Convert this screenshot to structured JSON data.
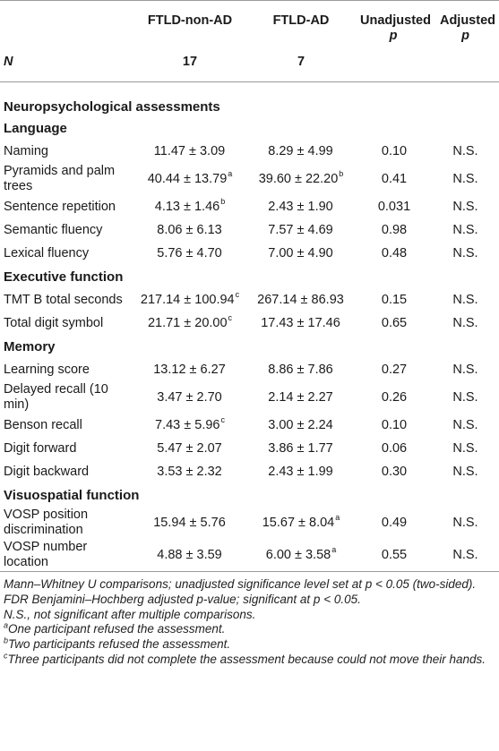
{
  "header": {
    "col1": "FTLD-non-AD",
    "col2": "FTLD-AD",
    "col3_line1": "Unadjusted",
    "col3_line2": "p",
    "col4_line1": "Adjusted",
    "col4_line2": "p",
    "n_label": "N",
    "n1": "17",
    "n2": "7"
  },
  "section_main": "Neuropsychological assessments",
  "groups": [
    {
      "title": "Language",
      "rows": [
        {
          "label": "Naming",
          "v1": "11.47 ± 3.09",
          "s1": "",
          "v2": "8.29 ± 4.99",
          "s2": "",
          "p": "0.10",
          "adj": "N.S."
        },
        {
          "label": "Pyramids and palm trees",
          "v1": "40.44 ± 13.79",
          "s1": "a",
          "v2": "39.60 ± 22.20",
          "s2": "b",
          "p": "0.41",
          "adj": "N.S."
        },
        {
          "label": "Sentence repetition",
          "v1": "4.13 ± 1.46",
          "s1": "b",
          "v2": "2.43 ± 1.90",
          "s2": "",
          "p": "0.031",
          "adj": "N.S."
        },
        {
          "label": "Semantic fluency",
          "v1": "8.06 ± 6.13",
          "s1": "",
          "v2": "7.57 ± 4.69",
          "s2": "",
          "p": "0.98",
          "adj": "N.S."
        },
        {
          "label": "Lexical fluency",
          "v1": "5.76 ± 4.70",
          "s1": "",
          "v2": "7.00 ± 4.90",
          "s2": "",
          "p": "0.48",
          "adj": "N.S."
        }
      ]
    },
    {
      "title": "Executive function",
      "rows": [
        {
          "label": "TMT B total seconds",
          "v1": "217.14 ± 100.94",
          "s1": "c",
          "v2": "267.14 ± 86.93",
          "s2": "",
          "p": "0.15",
          "adj": "N.S."
        },
        {
          "label": "Total digit symbol",
          "v1": "21.71 ± 20.00",
          "s1": "c",
          "v2": "17.43 ± 17.46",
          "s2": "",
          "p": "0.65",
          "adj": "N.S."
        }
      ]
    },
    {
      "title": "Memory",
      "rows": [
        {
          "label": "Learning score",
          "v1": "13.12 ± 6.27",
          "s1": "",
          "v2": "8.86 ± 7.86",
          "s2": "",
          "p": "0.27",
          "adj": "N.S."
        },
        {
          "label": "Delayed recall (10 min)",
          "v1": "3.47 ± 2.70",
          "s1": "",
          "v2": "2.14 ± 2.27",
          "s2": "",
          "p": "0.26",
          "adj": "N.S."
        },
        {
          "label": "Benson recall",
          "v1": "7.43 ± 5.96",
          "s1": "c",
          "v2": "3.00 ± 2.24",
          "s2": "",
          "p": "0.10",
          "adj": "N.S."
        },
        {
          "label": "Digit forward",
          "v1": "5.47 ± 2.07",
          "s1": "",
          "v2": "3.86 ± 1.77",
          "s2": "",
          "p": "0.06",
          "adj": "N.S."
        },
        {
          "label": "Digit backward",
          "v1": "3.53 ± 2.32",
          "s1": "",
          "v2": "2.43 ± 1.99",
          "s2": "",
          "p": "0.30",
          "adj": "N.S."
        }
      ]
    },
    {
      "title": "Visuospatial function",
      "rows": [
        {
          "label": "VOSP position discrimination",
          "v1": "15.94 ± 5.76",
          "s1": "",
          "v2": "15.67 ± 8.04",
          "s2": "a",
          "p": "0.49",
          "adj": "N.S."
        },
        {
          "label": "VOSP number location",
          "v1": "4.88 ± 3.59",
          "s1": "",
          "v2": "6.00 ± 3.58",
          "s2": "a",
          "p": "0.55",
          "adj": "N.S."
        }
      ]
    }
  ],
  "notes": {
    "n1": "Mann–Whitney U comparisons; unadjusted significance level set at p < 0.05 (two-sided).",
    "n2": "FDR Benjamini–Hochberg adjusted p-value; significant at p < 0.05.",
    "n3": "N.S., not significant after multiple comparisons.",
    "fa_letter": "a",
    "fa": "One participant refused the assessment.",
    "fb_letter": "b",
    "fb": "Two participants refused the assessment.",
    "fc_letter": "c",
    "fc": "Three participants did not complete the assessment because could not move their hands."
  }
}
